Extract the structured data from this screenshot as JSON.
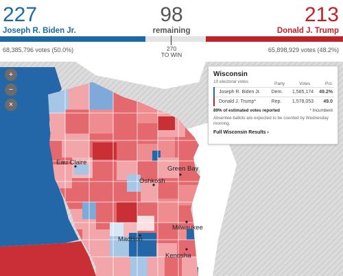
{
  "header": {
    "biden": {
      "ev": "227",
      "name": "Joseph R. Biden Jr.",
      "votes": "68,385,796 votes (50.0%)",
      "color": "#1a6aa8"
    },
    "trump": {
      "ev": "213",
      "name": "Donald J. Trump",
      "votes": "65,898,929 votes (48.2%)",
      "color": "#c42127"
    },
    "remaining": {
      "num": "98",
      "label": "remaining"
    },
    "to_win": {
      "num": "270",
      "label": "TO WIN"
    }
  },
  "map": {
    "cities": [
      "Eau Claire",
      "Green Bay",
      "Oshkosh",
      "Madison",
      "Milwaukee",
      "Kenosha"
    ],
    "zoom_in": "+",
    "zoom_out": "−",
    "reset": "×"
  },
  "info": {
    "state": "Wisconsin",
    "electoral_votes": "10 electoral votes",
    "col_party": "Party",
    "col_votes": "Votes",
    "col_pct": "Pct.",
    "rows": [
      {
        "name": "Joseph R. Biden Jr.",
        "party": "Dem.",
        "votes": "1,585,174",
        "pct": "49.2%",
        "color": "#1a6aa8"
      },
      {
        "name": "Donald J. Trump*",
        "party": "Rep.",
        "votes": "1,578,053",
        "pct": "49.0",
        "color": "#c42127"
      }
    ],
    "reported": "89% of estimated votes reported",
    "incumbent": "* Incumbent",
    "note": "Absentee ballots are expected to be counted by Wednesday morning.",
    "full_link": "Full Wisconsin Results ›"
  }
}
